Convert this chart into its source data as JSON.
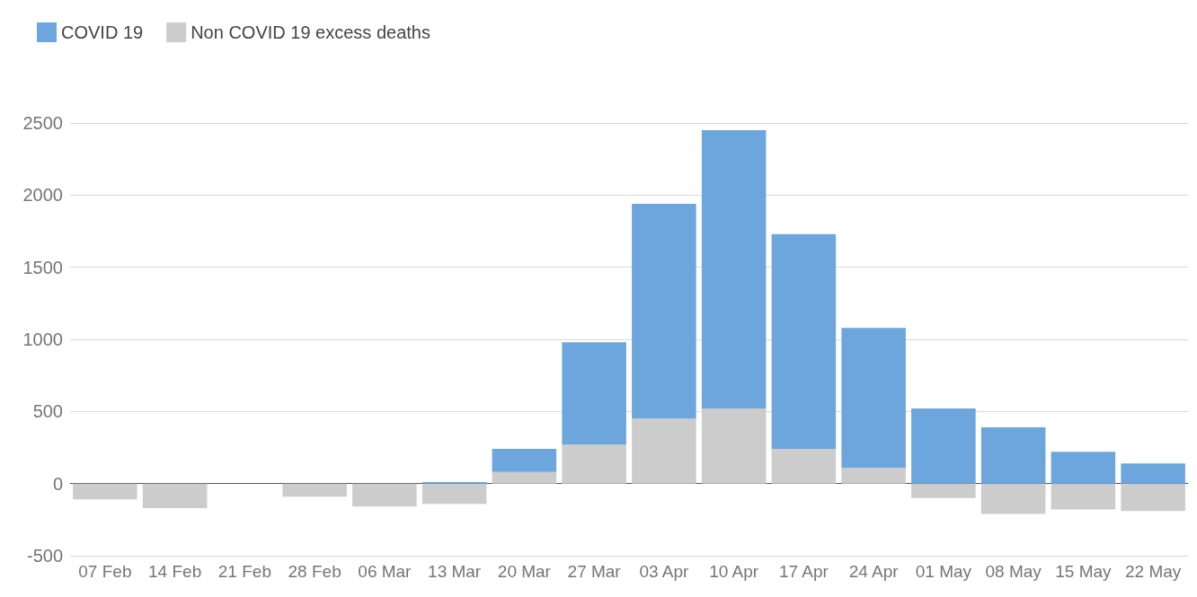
{
  "chart_data": {
    "type": "bar",
    "stacked": true,
    "categories": [
      "07 Feb",
      "14 Feb",
      "21 Feb",
      "28 Feb",
      "06 Mar",
      "13 Mar",
      "20 Mar",
      "27 Mar",
      "03 Apr",
      "10 Apr",
      "17 Apr",
      "24 Apr",
      "01 May",
      "08 May",
      "15 May",
      "22 May"
    ],
    "series": [
      {
        "name": "Non COVID 19 excess deaths",
        "color": "#cccccc",
        "values": [
          -110,
          -170,
          null,
          -90,
          -160,
          -140,
          80,
          270,
          450,
          520,
          240,
          110,
          -100,
          -210,
          -180,
          -190
        ]
      },
      {
        "name": "COVID 19",
        "color": "#6ca6dd",
        "values": [
          null,
          null,
          null,
          null,
          null,
          10,
          160,
          710,
          1490,
          1930,
          1490,
          970,
          520,
          390,
          220,
          140
        ]
      }
    ],
    "ylim": [
      -500,
      2500
    ],
    "yticks": [
      -500,
      0,
      500,
      1000,
      1500,
      2000,
      2500
    ],
    "grid": "y",
    "legend": "top left"
  }
}
